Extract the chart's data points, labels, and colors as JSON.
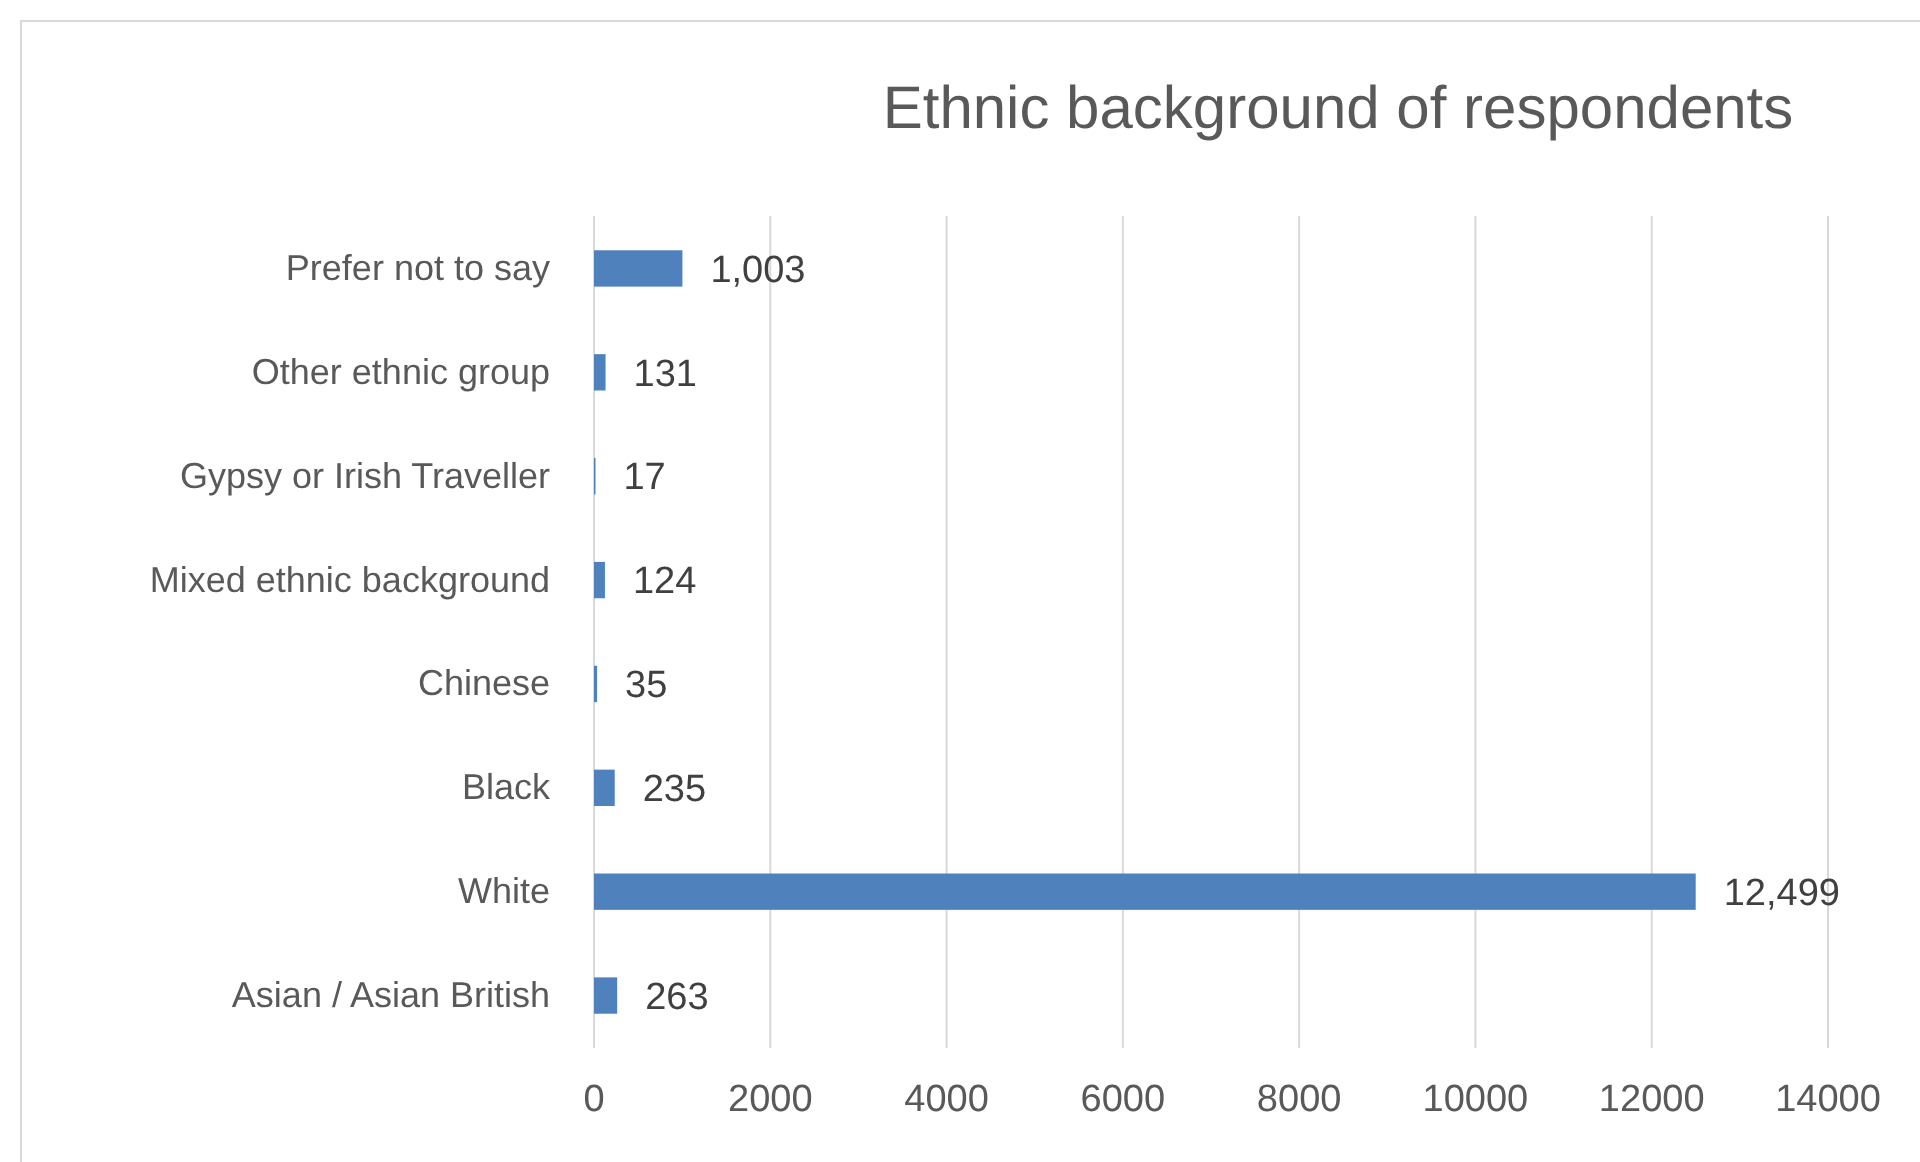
{
  "chart_data": {
    "type": "bar",
    "orientation": "horizontal",
    "title": "Ethnic background of respondents",
    "categories": [
      "Prefer not to say",
      "Other ethnic group",
      "Gypsy or Irish Traveller",
      "Mixed ethnic background",
      "Chinese",
      "Black",
      "White",
      "Asian / Asian British"
    ],
    "values": [
      1003,
      131,
      17,
      124,
      35,
      235,
      12499,
      263
    ],
    "value_labels": [
      "1,003",
      "131",
      "17",
      "124",
      "35",
      "235",
      "12,499",
      "263"
    ],
    "color": "#4f81bd",
    "xlim": [
      0,
      14000
    ],
    "xticks": [
      0,
      2000,
      4000,
      6000,
      8000,
      10000,
      12000,
      14000
    ],
    "grid": "x"
  }
}
